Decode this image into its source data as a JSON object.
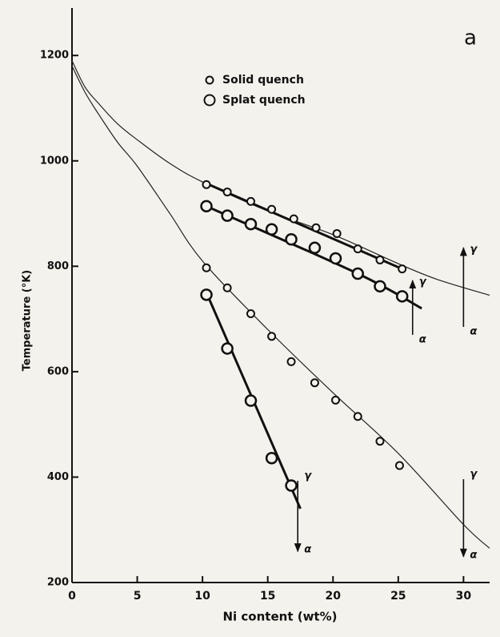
{
  "chart_data": {
    "type": "scatter",
    "panel_label": "a",
    "xlabel": "Ni content (wt%)",
    "ylabel": "Temperature (°K)",
    "xlim": [
      0,
      32
    ],
    "ylim": [
      200,
      1290
    ],
    "xticks": [
      0,
      5,
      10,
      15,
      20,
      25,
      30
    ],
    "yticks": [
      200,
      400,
      600,
      800,
      1000,
      1200
    ],
    "color": "#111111",
    "series": [
      {
        "name": "Solid quench",
        "marker": "small",
        "x": [
          10.3,
          11.9,
          13.7,
          15.3,
          17.0,
          18.7,
          20.3,
          21.9,
          23.6,
          25.3
        ],
        "values": [
          955,
          941,
          923,
          908,
          890,
          873,
          862,
          833,
          812,
          795
        ]
      },
      {
        "name": "Splat quench",
        "marker": "large",
        "x": [
          10.3,
          11.9,
          13.7,
          15.3,
          16.8,
          18.6,
          20.2,
          21.9,
          23.6,
          25.3
        ],
        "values": [
          914,
          896,
          880,
          870,
          851,
          835,
          815,
          786,
          762,
          743
        ]
      },
      {
        "marker": "small",
        "x": [
          10.3,
          11.9,
          13.7,
          15.3,
          16.8,
          18.6,
          20.2,
          21.9,
          23.6,
          25.1
        ],
        "values": [
          797,
          759,
          710,
          667,
          619,
          579,
          546,
          515,
          468,
          422
        ]
      },
      {
        "marker": "large",
        "x": [
          10.3,
          11.9,
          13.7,
          15.3,
          16.8
        ],
        "values": [
          746,
          644,
          545,
          436,
          384
        ]
      }
    ],
    "curves": [
      {
        "style": "thin",
        "x": [
          0,
          1,
          2,
          3.5,
          5,
          7.5,
          10,
          15,
          20,
          25,
          28,
          32
        ],
        "values": [
          1190,
          1140,
          1110,
          1070,
          1040,
          995,
          960,
          905,
          860,
          805,
          775,
          745
        ]
      },
      {
        "style": "thin",
        "x": [
          0,
          1,
          2,
          3.5,
          5,
          7.5,
          10,
          15,
          20,
          25,
          30,
          32
        ],
        "values": [
          1180,
          1130,
          1090,
          1035,
          990,
          900,
          810,
          680,
          560,
          445,
          310,
          265
        ]
      },
      {
        "style": "thick",
        "x": [
          10.3,
          25.3
        ],
        "values": [
          957,
          795
        ]
      },
      {
        "style": "thick",
        "x": [
          10.3,
          21.9,
          26.8
        ],
        "values": [
          914,
          786,
          720
        ]
      },
      {
        "style": "thick",
        "x": [
          10.3,
          17.5
        ],
        "values": [
          750,
          340
        ]
      }
    ],
    "arrows": [
      {
        "x": 26.1,
        "from": 670,
        "to": 773,
        "start_label": "α",
        "end_label": "γ"
      },
      {
        "x": 30.0,
        "from": 685,
        "to": 835,
        "start_label": "α",
        "end_label": "γ"
      },
      {
        "x": 17.3,
        "from": 393,
        "to": 259,
        "start_label": "γ",
        "end_label": "α"
      },
      {
        "x": 30.0,
        "from": 396,
        "to": 249,
        "start_label": "γ",
        "end_label": "α"
      }
    ]
  }
}
